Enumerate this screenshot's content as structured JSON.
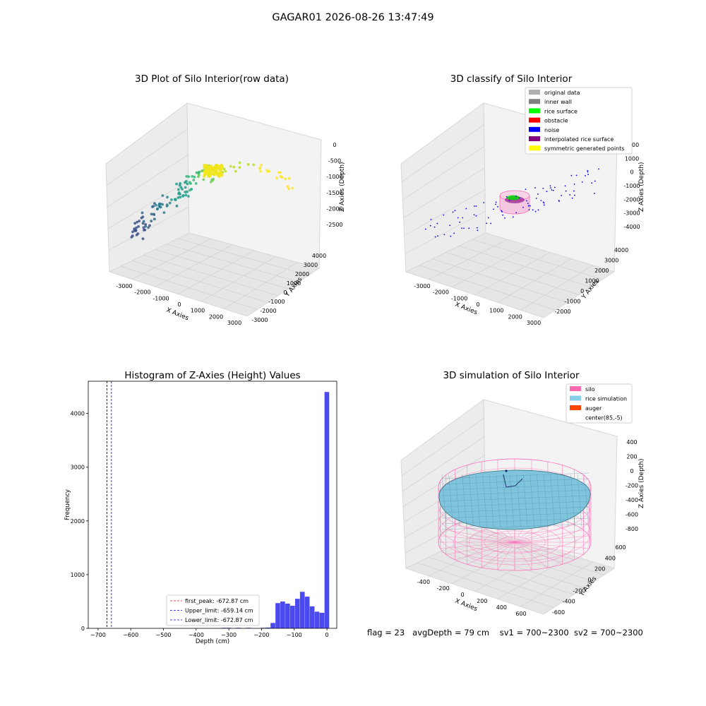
{
  "figure": {
    "title": "GAGAR01 2026-08-26 13:47:49",
    "status": {
      "flag": "flag = 23",
      "avg_depth": "avgDepth = 79 cm",
      "sv1": "sv1 = 700~2300",
      "sv2": "sv2 = 700~2300"
    }
  },
  "chart_data": [
    {
      "type": "scatter",
      "projection": "3d",
      "title": "3D Plot of Silo Interior(row data)",
      "xlabel": "X Axies",
      "ylabel": "Y Axies",
      "zlabel": "Z Axies (Depth)",
      "x_ticks": [
        "-3000",
        "-2000",
        "-1000",
        "0",
        "1000",
        "2000",
        "3000"
      ],
      "y_ticks": [
        "-3000",
        "-2000",
        "-1000",
        "0",
        "1000",
        "2000",
        "3000",
        "4000"
      ],
      "z_ticks": [
        "0",
        "-500",
        "-1000",
        "-1500",
        "-2000",
        "-2500"
      ],
      "colormap": "viridis",
      "grid": true
    },
    {
      "type": "scatter",
      "projection": "3d",
      "title": "3D classify of Silo Interior",
      "xlabel": "X Axies",
      "ylabel": "Y Axies",
      "zlabel": "Z Axies (Depth)",
      "x_ticks": [
        "-3000",
        "-2000",
        "-1000",
        "0",
        "1000",
        "2000",
        "3000"
      ],
      "y_ticks": [
        "-2000",
        "-1000",
        "0",
        "1000",
        "2000",
        "3000",
        "4000"
      ],
      "z_ticks": [
        "2000",
        "1000",
        "0",
        "-1000",
        "-2000",
        "-3000",
        "-4000"
      ],
      "legend": {
        "position": "top-right",
        "entries": [
          {
            "label": "original data",
            "color": "#b0b0b0"
          },
          {
            "label": "inner wall",
            "color": "#808080"
          },
          {
            "label": "rice surface",
            "color": "#00ff00"
          },
          {
            "label": "obstacle",
            "color": "#ff0000"
          },
          {
            "label": "noise",
            "color": "#0000ff"
          },
          {
            "label": "interpolated rice surface",
            "color": "#800080"
          },
          {
            "label": "symmetric generated points",
            "color": "#ffff00"
          }
        ]
      },
      "grid": true
    },
    {
      "type": "bar",
      "title": "Histogram of Z-Axies (Height) Values",
      "xlabel": "Depth (cm)",
      "ylabel": "Frequency",
      "xlim": [
        -730,
        30
      ],
      "ylim": [
        0,
        4600
      ],
      "x_ticks": [
        -700,
        -600,
        -500,
        -400,
        -300,
        -200,
        -100,
        0
      ],
      "y_ticks": [
        0,
        1000,
        2000,
        3000,
        4000
      ],
      "bar_color": "#4a4af0",
      "bin_width": 15,
      "bins": [
        {
          "x": -315,
          "value": 10
        },
        {
          "x": -300,
          "value": 10
        },
        {
          "x": -270,
          "value": 10
        },
        {
          "x": -240,
          "value": 10
        },
        {
          "x": -195,
          "value": 10
        },
        {
          "x": -180,
          "value": 15
        },
        {
          "x": -165,
          "value": 100
        },
        {
          "x": -150,
          "value": 470
        },
        {
          "x": -135,
          "value": 500
        },
        {
          "x": -120,
          "value": 460
        },
        {
          "x": -105,
          "value": 420
        },
        {
          "x": -90,
          "value": 550
        },
        {
          "x": -75,
          "value": 680
        },
        {
          "x": -60,
          "value": 590
        },
        {
          "x": -45,
          "value": 410
        },
        {
          "x": -30,
          "value": 310
        },
        {
          "x": -15,
          "value": 290
        },
        {
          "x": 0,
          "value": 4400
        }
      ],
      "vlines": [
        {
          "label": "first_peak: -672.87 cm",
          "x": -672.87,
          "color": "#ff0000",
          "style": "dashed"
        },
        {
          "label": "Upper_limit: -659.14 cm",
          "x": -659.14,
          "color": "#0000ff",
          "style": "dashed"
        },
        {
          "label": "Lower_limit: -672.87 cm",
          "x": -672.87,
          "color": "#0000ff",
          "style": "dashed"
        }
      ],
      "legend_position": "lower-right"
    },
    {
      "type": "scatter",
      "projection": "3d",
      "title": "3D simulation of Silo Interior",
      "xlabel": "X Axies",
      "ylabel": "Y Axies",
      "zlabel": "Z Axies (Depth)",
      "x_ticks": [
        "-400",
        "-200",
        "0",
        "200",
        "400",
        "600"
      ],
      "y_ticks": [
        "-600",
        "-400",
        "-200",
        "0",
        "200",
        "400",
        "600"
      ],
      "z_ticks": [
        "400",
        "200",
        "0",
        "-200",
        "-400",
        "-600",
        "-800"
      ],
      "legend": {
        "position": "top-right",
        "entries": [
          {
            "label": "silo",
            "color": "#ff69b4"
          },
          {
            "label": "rice simulation",
            "color": "#87ceeb"
          },
          {
            "label": "auger",
            "color": "#ff4500"
          },
          {
            "label": "center(85,-5)",
            "color": "#ffffff"
          }
        ]
      },
      "grid": true
    }
  ]
}
